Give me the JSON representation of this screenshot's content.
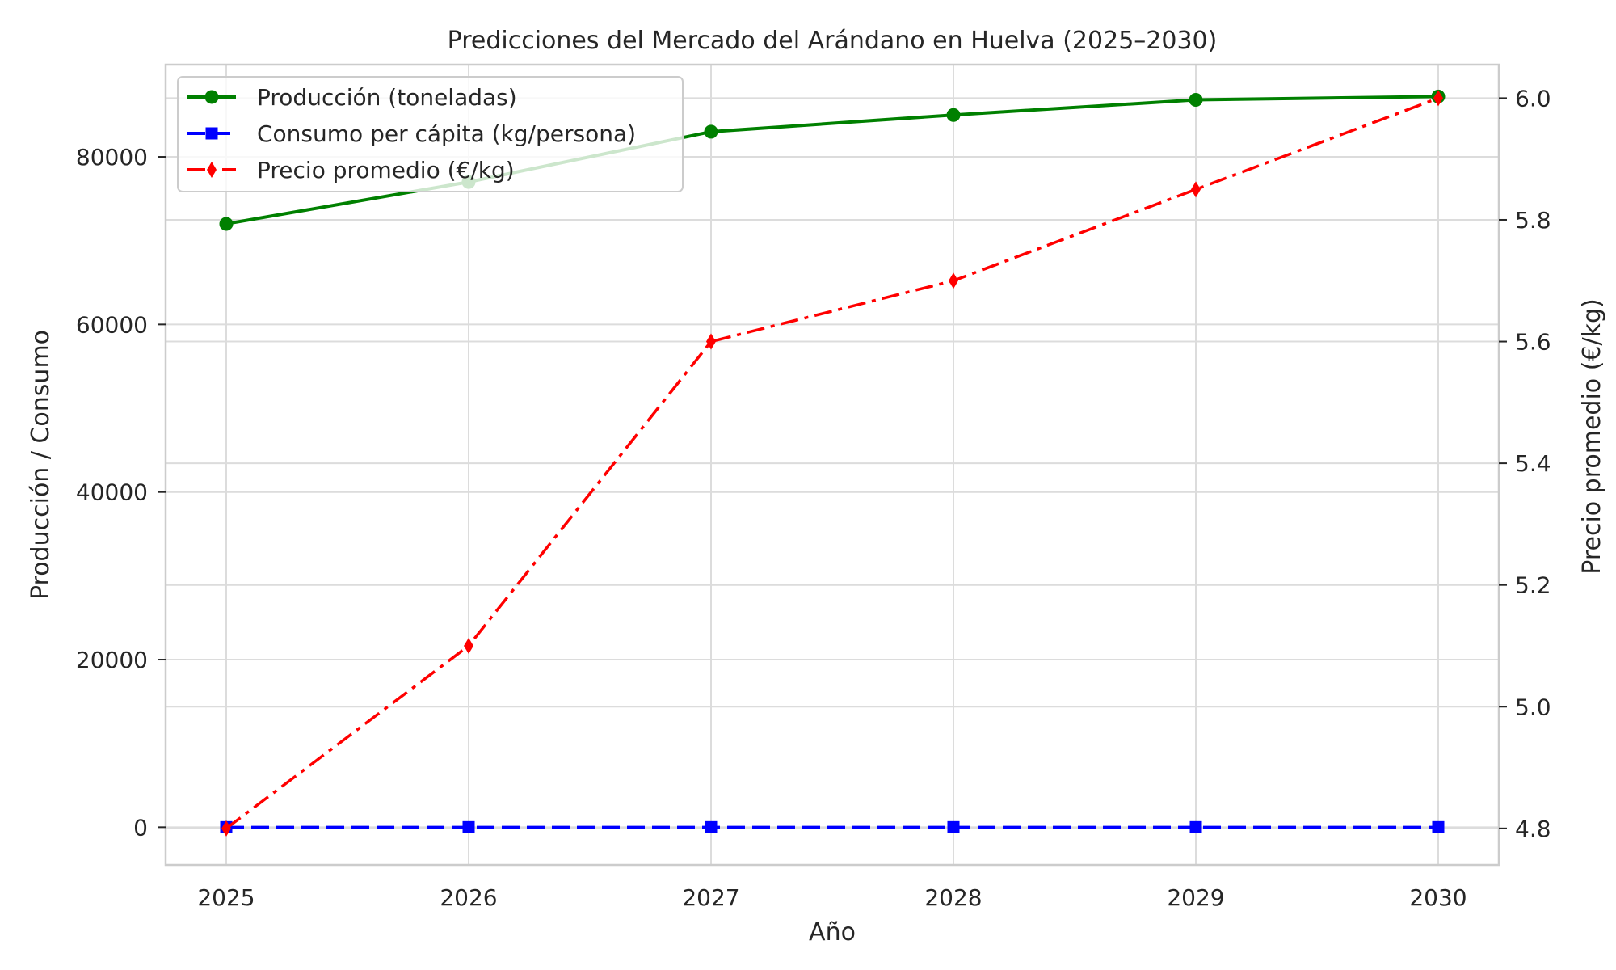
{
  "chart_data": {
    "type": "line",
    "title": "Predicciones del Mercado del Arándano en Huelva (2025–2030)",
    "xlabel": "Año",
    "ylabel_left": "Producción / Consumo",
    "ylabel_right": "Precio promedio (€/kg)",
    "x": [
      2025,
      2026,
      2027,
      2028,
      2029,
      2030
    ],
    "xlim": [
      2024.75,
      2030.25
    ],
    "ylim_left": [
      -4500,
      91000
    ],
    "ylim_right": [
      4.74,
      6.055
    ],
    "yticks_left": [
      0,
      20000,
      40000,
      60000,
      80000
    ],
    "yticks_right": [
      4.8,
      5.0,
      5.2,
      5.4,
      5.6,
      5.8,
      6.0
    ],
    "grid": true,
    "legend_position": "top-left",
    "series": [
      {
        "name": "Producción (toneladas)",
        "axis": "left",
        "color": "#008000",
        "line_style": "solid",
        "marker": "circle",
        "values": [
          72000,
          77000,
          83000,
          85000,
          86800,
          87200
        ]
      },
      {
        "name": "Consumo per cápita (kg/persona)",
        "axis": "left",
        "color": "#0000ff",
        "line_style": "dashed",
        "marker": "square",
        "values": [
          1.2,
          1.3,
          1.4,
          1.5,
          1.6,
          1.7
        ]
      },
      {
        "name": "Precio promedio (€/kg)",
        "axis": "right",
        "color": "#ff0000",
        "line_style": "dashdot",
        "marker": "diamond",
        "values": [
          4.8,
          5.1,
          5.6,
          5.7,
          5.85,
          6.0
        ]
      }
    ]
  }
}
